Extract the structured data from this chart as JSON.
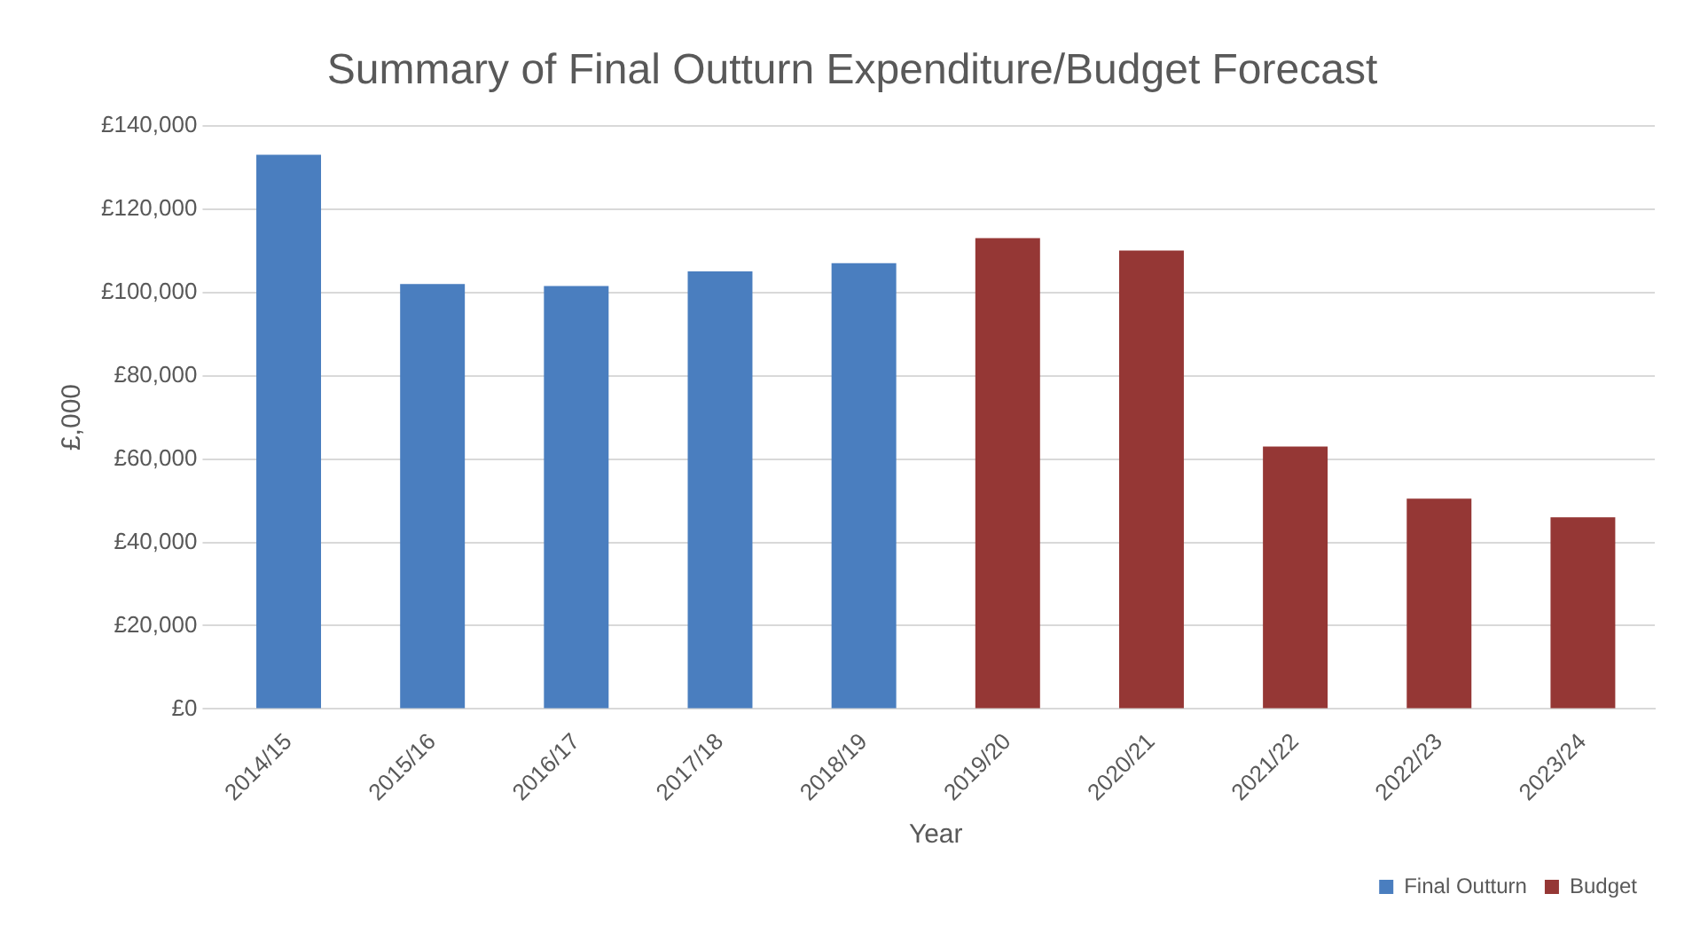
{
  "chart_data": {
    "type": "bar",
    "title": "Summary of Final Outturn Expenditure/Budget Forecast",
    "xlabel": "Year",
    "ylabel": "£,000",
    "categories": [
      "2014/15",
      "2015/16",
      "2016/17",
      "2017/18",
      "2018/19",
      "2019/20",
      "2020/21",
      "2021/22",
      "2022/23",
      "2023/24"
    ],
    "series": [
      {
        "name": "Final Outturn",
        "color": "#4a7ebf",
        "values": [
          133000,
          102000,
          101500,
          105000,
          107000,
          null,
          null,
          null,
          null,
          null
        ]
      },
      {
        "name": "Budget",
        "color": "#953735",
        "values": [
          null,
          null,
          null,
          null,
          null,
          113000,
          110000,
          63000,
          50500,
          46000
        ]
      }
    ],
    "ylim": [
      0,
      140000
    ],
    "yticks": [
      {
        "value": 0,
        "label": "£0"
      },
      {
        "value": 20000,
        "label": "£20,000"
      },
      {
        "value": 40000,
        "label": "£40,000"
      },
      {
        "value": 60000,
        "label": "£60,000"
      },
      {
        "value": 80000,
        "label": "£80,000"
      },
      {
        "value": 100000,
        "label": "£100,000"
      },
      {
        "value": 120000,
        "label": "£120,000"
      },
      {
        "value": 140000,
        "label": "£140,000"
      }
    ],
    "grid": "y",
    "legend": "bottom right"
  }
}
